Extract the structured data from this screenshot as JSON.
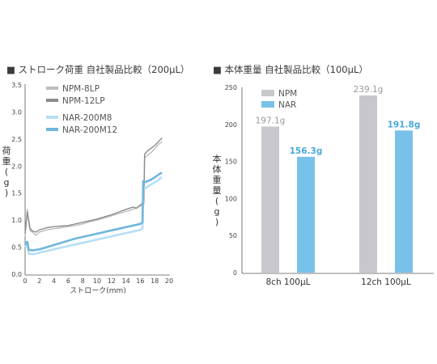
{
  "chart_data": [
    {
      "type": "line",
      "title": "■ ストローク荷重 自社製品比較（200μL）",
      "xlabel": "ストローク(mm)",
      "ylabel": "荷重(g)",
      "xlim": [
        0,
        20
      ],
      "ylim": [
        0,
        3.5
      ],
      "xticks": [
        "0",
        "2",
        "4",
        "6",
        "8",
        "10",
        "12",
        "14",
        "16",
        "18",
        "20"
      ],
      "yticks": [
        "0.0",
        "0.5",
        "1.0",
        "1.5",
        "2.0",
        "2.5",
        "3.0",
        "3.5"
      ],
      "grid": false,
      "legend_position": "top-right",
      "series": [
        {
          "name": "NPM-8LP",
          "color": "#bdbdbd",
          "width": 1.4,
          "x": [
            0,
            0.3,
            0.5,
            0.7,
            1,
            1.5,
            2,
            3,
            4,
            5,
            6,
            7,
            8,
            9,
            10,
            11,
            12,
            13,
            14,
            15,
            15.5,
            16,
            16.2,
            16.4,
            16.5,
            16.6,
            17,
            17.5,
            18,
            18.5,
            19
          ],
          "y": [
            0.7,
            1.2,
            0.95,
            0.8,
            0.78,
            0.72,
            0.78,
            0.82,
            0.84,
            0.86,
            0.88,
            0.9,
            0.93,
            0.97,
            1.0,
            1.04,
            1.08,
            1.12,
            1.16,
            1.2,
            1.23,
            1.26,
            1.28,
            1.27,
            1.3,
            2.15,
            2.2,
            2.25,
            2.32,
            2.4,
            2.45
          ]
        },
        {
          "name": "NPM-12LP",
          "color": "#8c8c8c",
          "width": 1.4,
          "x": [
            0,
            0.3,
            0.5,
            0.7,
            1,
            1.5,
            2,
            3,
            4,
            5,
            6,
            7,
            8,
            9,
            10,
            11,
            12,
            13,
            14,
            15,
            15.5,
            16,
            16.2,
            16.4,
            16.5,
            16.6,
            17,
            17.5,
            18,
            18.5,
            19
          ],
          "y": [
            0.75,
            1.15,
            1.0,
            0.85,
            0.8,
            0.78,
            0.82,
            0.86,
            0.88,
            0.89,
            0.9,
            0.93,
            0.96,
            0.99,
            1.02,
            1.06,
            1.1,
            1.15,
            1.2,
            1.24,
            1.22,
            1.28,
            1.3,
            1.32,
            1.35,
            2.22,
            2.28,
            2.33,
            2.38,
            2.45,
            2.52
          ]
        },
        {
          "name": "NAR-200M8",
          "color": "#b7dff5",
          "width": 2.6,
          "x": [
            0,
            0.3,
            0.5,
            1,
            1.5,
            2,
            3,
            4,
            5,
            6,
            7,
            8,
            9,
            10,
            11,
            12,
            13,
            14,
            15,
            16,
            16.3,
            16.4,
            16.6,
            17,
            17.5,
            18,
            18.5,
            19
          ],
          "y": [
            0.5,
            0.55,
            0.38,
            0.37,
            0.38,
            0.4,
            0.43,
            0.46,
            0.49,
            0.52,
            0.55,
            0.58,
            0.61,
            0.64,
            0.67,
            0.7,
            0.73,
            0.76,
            0.79,
            0.82,
            0.85,
            1.6,
            1.58,
            1.62,
            1.66,
            1.7,
            1.74,
            1.8
          ]
        },
        {
          "name": "NAR-200M12",
          "color": "#6fb6dd",
          "width": 2.6,
          "x": [
            0,
            0.3,
            0.5,
            1,
            1.5,
            2,
            3,
            4,
            5,
            6,
            7,
            8,
            9,
            10,
            11,
            12,
            13,
            14,
            15,
            16,
            16.3,
            16.4,
            16.6,
            17,
            17.5,
            18,
            18.5,
            19
          ],
          "y": [
            0.55,
            0.6,
            0.45,
            0.44,
            0.45,
            0.46,
            0.5,
            0.54,
            0.58,
            0.62,
            0.66,
            0.69,
            0.72,
            0.75,
            0.78,
            0.81,
            0.84,
            0.87,
            0.9,
            0.93,
            0.96,
            1.72,
            1.7,
            1.72,
            1.75,
            1.79,
            1.84,
            1.88
          ]
        }
      ]
    },
    {
      "type": "bar",
      "title": "■ 本体重量 自社製品比較（100μL）",
      "ylabel": "本体重量(g)",
      "ylim": [
        0,
        250
      ],
      "yticks": [
        "0",
        "50",
        "100",
        "150",
        "200",
        "250"
      ],
      "categories": [
        "8ch 100μL",
        "12ch 100μL"
      ],
      "legend_position": "top-left",
      "series": [
        {
          "name": "NPM",
          "color": "#c8c8cc",
          "values": [
            197.1,
            239.1
          ],
          "labels": [
            "197.1g",
            "239.1g"
          ]
        },
        {
          "name": "NAR",
          "color": "#78c2ea",
          "values": [
            156.3,
            191.8
          ],
          "labels": [
            "156.3g",
            "191.8g"
          ]
        }
      ]
    }
  ]
}
